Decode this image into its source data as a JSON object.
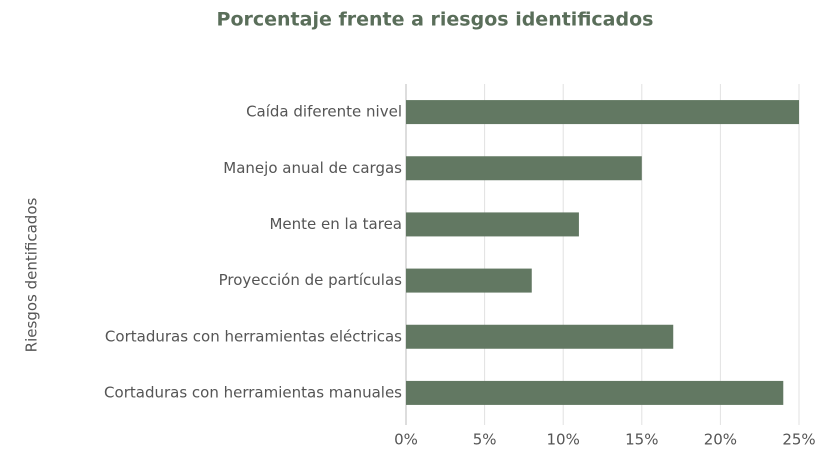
{
  "chart_data": {
    "type": "bar",
    "orientation": "horizontal",
    "title": "Porcentaje frente a riesgos identificados",
    "y_label": "Riesgos dentificados",
    "categories": [
      "Caída diferente nivel",
      "Manejo anual de cargas",
      "Mente en la tarea",
      "Proyección de partículas",
      "Cortaduras con herramientas eléctricas",
      "Cortaduras con herramientas manuales"
    ],
    "values": [
      25,
      15,
      11,
      8,
      17,
      24
    ],
    "color": "#627862",
    "xlim": [
      0,
      25
    ],
    "xticks": [
      {
        "value": 0,
        "label": "0%"
      },
      {
        "value": 5,
        "label": "5%"
      },
      {
        "value": 10,
        "label": "10%"
      },
      {
        "value": 15,
        "label": "15%"
      },
      {
        "value": 20,
        "label": "20%"
      },
      {
        "value": 25,
        "label": "25%"
      }
    ],
    "grid": true
  }
}
